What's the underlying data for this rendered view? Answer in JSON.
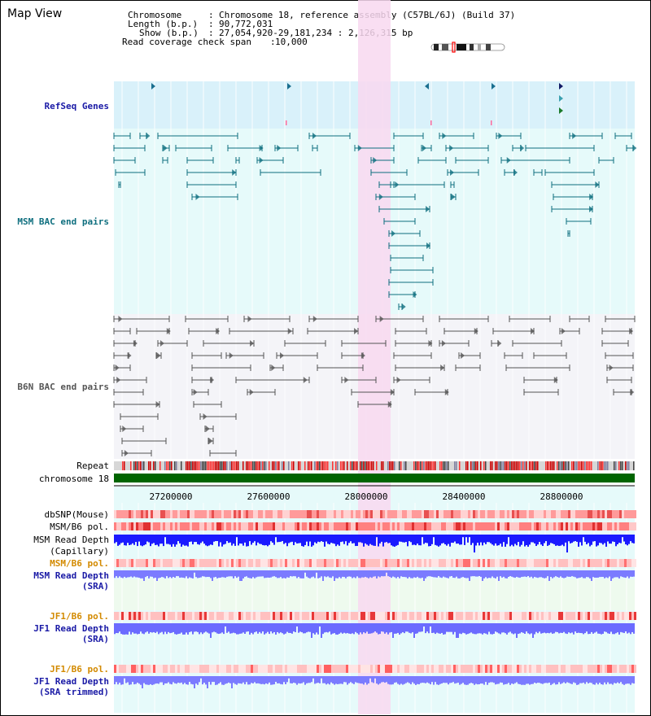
{
  "title": "Map View",
  "header": {
    "chromosome": {
      "label": "Chromosome",
      "value": "Chromosome 18, reference assembly (C57BL/6J) (Build 37)"
    },
    "length": {
      "label": "Length (b.p.)",
      "value": "90,772,031"
    },
    "show": {
      "label": "Show (b.p.)",
      "value": "27,054,920-29,181,234 : 2,126,315 bp"
    },
    "coverage": {
      "label": "Read coverage check span",
      "value": "10,000"
    }
  },
  "tracks": {
    "refseq": "RefSeq Genes",
    "msm_bac": "MSM BAC end pairs",
    "b6n_bac": "B6N BAC end pairs",
    "repeat": "Repeat",
    "chromosome": "chromosome 18",
    "dbsnp": "dbSNP(Mouse)",
    "msm_b6_pol_1": "MSM/B6 pol.",
    "msm_read_depth_cap_1": "MSM Read Depth",
    "msm_read_depth_cap_2": "(Capillary)",
    "msm_b6_pol_2": "MSM/B6 pol.",
    "msm_read_depth_sra_1": "MSM Read Depth",
    "msm_read_depth_sra_2": "(SRA)",
    "jf1_b6_pol_1": "JF1/B6 pol.",
    "jf1_read_depth_sra_1": "JF1 Read Depth",
    "jf1_read_depth_sra_2": "(SRA)",
    "jf1_b6_pol_2": "JF1/B6 pol.",
    "jf1_read_depth_trim_1": "JF1 Read Depth",
    "jf1_read_depth_trim_2": "(SRA trimmed)"
  },
  "ruler": {
    "ticks": [
      "27200000",
      "27600000",
      "28000000",
      "28400000",
      "28800000"
    ]
  },
  "colors": {
    "highlight": "#f8d8f0",
    "refseq_bg": "#d9f1fa",
    "msm_bg": "#e6fafa",
    "b6n_bg": "#f4f4f8",
    "msm_line": "#0f6f7f",
    "b6n_line": "#555555",
    "chromosome_bar": "#006400",
    "depth_capillary": "#1a1aff",
    "depth_sra": "#7b7bff"
  }
}
